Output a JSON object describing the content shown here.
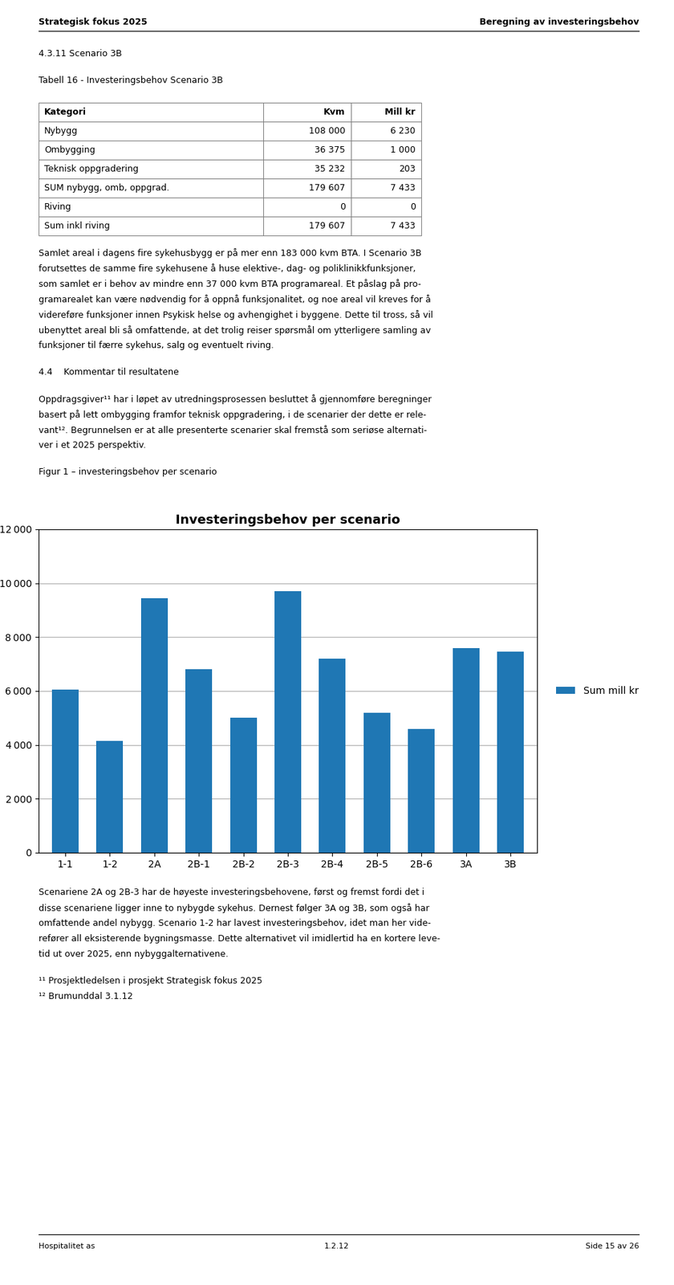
{
  "chart_data": {
    "type": "bar",
    "title": "Investeringsbehov per scenario",
    "categories": [
      "1-1",
      "1-2",
      "2A",
      "2B-1",
      "2B-2",
      "2B-3",
      "2B-4",
      "2B-5",
      "2B-6",
      "3A",
      "3B"
    ],
    "series": [
      {
        "name": "Sum mill kr",
        "values": [
          6050,
          4150,
          9450,
          6800,
          5000,
          9700,
          7200,
          5200,
          4600,
          7600,
          7450
        ]
      }
    ],
    "ylim": [
      0,
      12000
    ],
    "yticks": [
      0,
      {
        "value": 2000,
        "label": "2 000"
      },
      {
        "value": 4000,
        "label": "4 000"
      },
      {
        "value": 6000,
        "label": "6 000"
      },
      {
        "value": 8000,
        "label": "8 000"
      },
      {
        "value": 10000,
        "label": "10 000"
      },
      {
        "value": 12000,
        "label": "12 000"
      }
    ],
    "grid": true,
    "legend": "right",
    "annotations": {
      "header": [
        "Strategisk fokus 2025",
        "Beregning av investeringsbehov"
      ],
      "before_chart": [
        [
          "4.3.11 Scenario 3B"
        ],
        [
          "Tabell 16 - Investeringsbehov Scenario 3B"
        ],
        {
          "header": [
            "Kategori",
            "Kvm",
            "Mill kr"
          ],
          "rows": [
            [
              "Nybygg",
              "108 000",
              "6 230"
            ],
            [
              "Ombygging",
              "36 375",
              "1 000"
            ],
            [
              "Teknisk oppgradering",
              "35 232",
              "203"
            ],
            [
              "SUM nybygg, omb, oppgrad.",
              "179 607",
              "7 433"
            ],
            [
              "Riving",
              "0",
              "0"
            ],
            [
              "Sum inkl riving",
              "179 607",
              "7 433"
            ]
          ]
        },
        [
          "Samlet areal i dagens fire sykehusbygg er på mer enn 183 000 kvm BTA. I Scenario 3B",
          "forutsettes de samme fire sykehusene å huse elektive-, dag- og poliklinikkfunksjoner,",
          "som samlet er i behov av mindre enn 37 000 kvm BTA programareal. Et påslag på pro-",
          "gramarealet kan være nødvendig for å oppnå funksjonalitet, og noe areal vil kreves for å",
          "videreføre funksjoner innen Psykisk helse og avhengighet i byggene. Dette til tross, så vil",
          "ubenyttet areal bli så omfattende, at det trolig reiser spørsmål om ytterligere samling av",
          "funksjoner til færre sykehus, salg og eventuelt riving."
        ],
        [
          "4.4    Kommentar til resultatene"
        ],
        [
          "Oppdragsgiver¹¹ har i løpet av utredningsprosessen besluttet å gjennomføre beregninger",
          "basert på lett ombygging framfor teknisk oppgradering, i de scenarier der dette er rele-",
          "vant¹². Begrunnelsen er at alle presenterte scenarier skal fremstå som seriøse alternati-",
          "ver i et 2025 perspektiv."
        ],
        [
          "Figur 1 – investeringsbehov per scenario"
        ]
      ],
      "after_chart": [
        [
          "Scenariene 2A og 2B-3 har de høyeste investeringsbehovene, først og fremst fordi det i",
          "disse scenariene ligger inne to nybygde sykehus. Dernest følger 3A og 3B, som også har",
          "omfattende andel nybygg. Scenario 1-2 har lavest investeringsbehov, idet man her vide-",
          "refører all eksisterende bygningsmasse. Dette alternativet vil imidlertid ha en kortere leve-",
          "tid ut over 2025, enn nybyggalternativene."
        ],
        [
          "¹¹ Prosjektledelsen i prosjekt Strategisk fokus 2025",
          "¹² Brumunddal 3.1.12"
        ]
      ],
      "footer": [
        "Hospitalitet as",
        "1.2.12",
        "Side 15 av 26"
      ]
    }
  }
}
